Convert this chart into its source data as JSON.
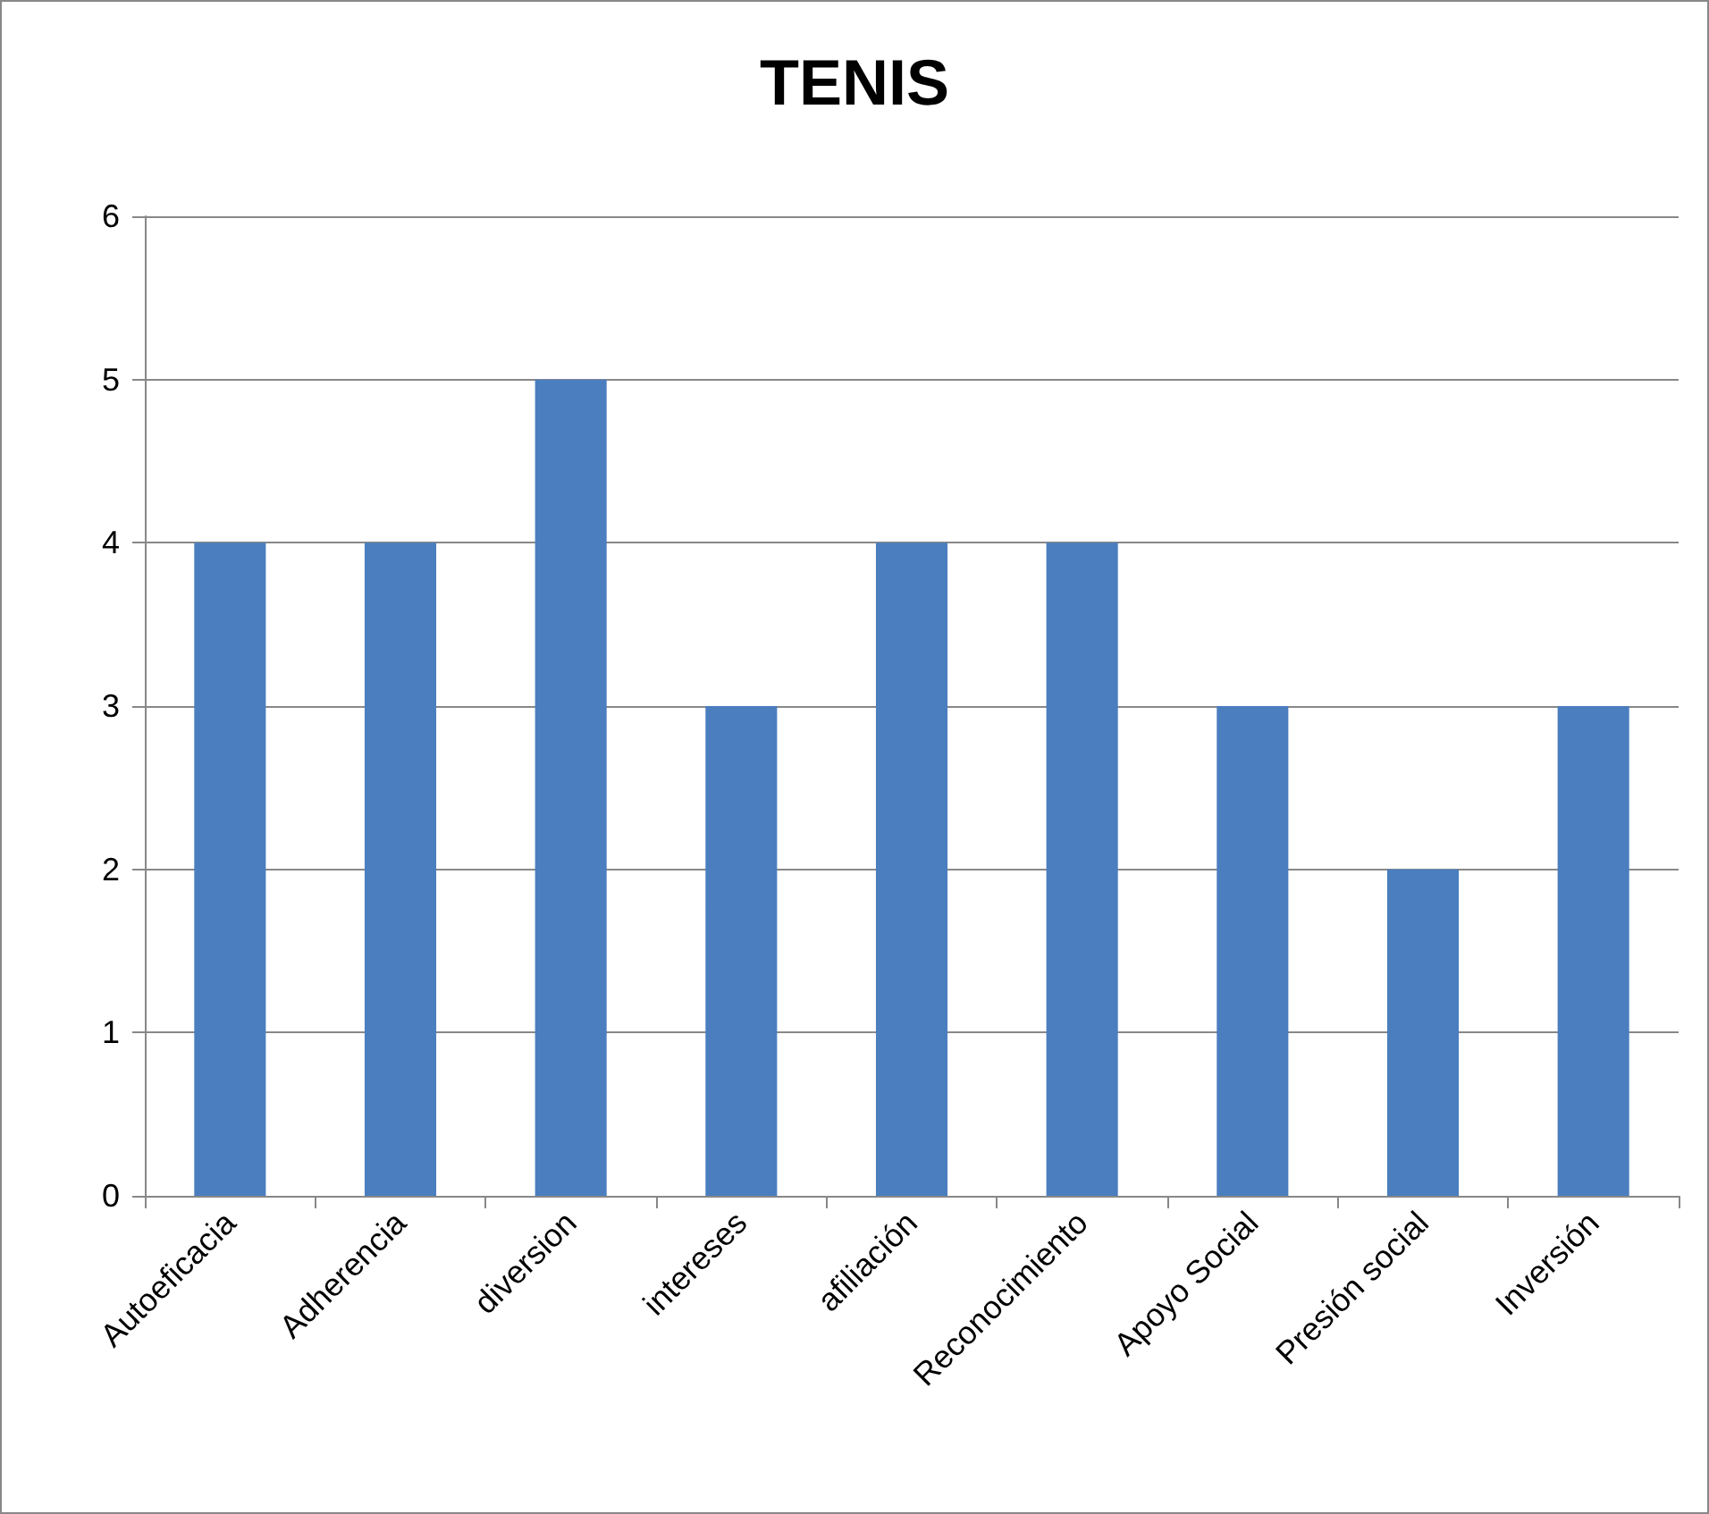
{
  "chart_data": {
    "type": "bar",
    "title": "TENIS",
    "categories": [
      "Autoeficacia",
      "Adherencia",
      "diversion",
      "intereses",
      "afiliación",
      "Reconocimiento",
      "Apoyo Social",
      "Presión social",
      "Inversión"
    ],
    "values": [
      4,
      4,
      5,
      3,
      4,
      4,
      3,
      2,
      3
    ],
    "color": "#4a7ebf",
    "ylim": [
      0,
      6
    ],
    "yticks": [
      0,
      1,
      2,
      3,
      4,
      5,
      6
    ],
    "grid": "y"
  }
}
